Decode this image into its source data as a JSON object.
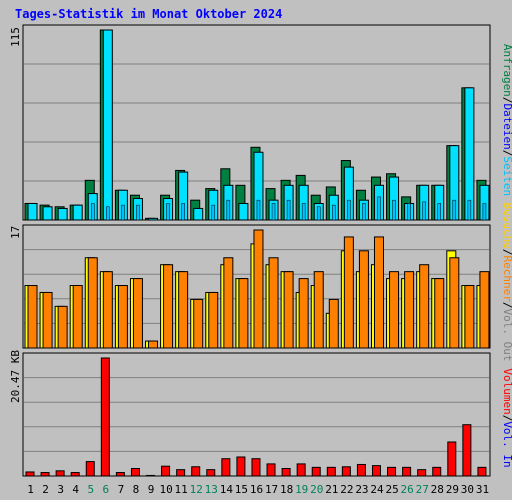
{
  "title": "Tages-Statistik im Monat Oktober 2024",
  "colors": {
    "background": "#c0c0c0",
    "grid": "#808080",
    "title": "#0000ff",
    "hits": "#008040",
    "files": "#00e0ff",
    "pages": "#00c0ff",
    "visits": "#ffff00",
    "sites": "#ff8000",
    "kbytes": "#ff0000",
    "weekend_label": "#00805c",
    "weekday_label": "#000000"
  },
  "chart_data": [
    {
      "type": "bar",
      "name": "hits-files-pages",
      "ymax_label": "115",
      "ylim": [
        0,
        115
      ],
      "categories": [
        "1",
        "2",
        "3",
        "4",
        "5",
        "6",
        "7",
        "8",
        "9",
        "10",
        "11",
        "12",
        "13",
        "14",
        "15",
        "16",
        "17",
        "18",
        "19",
        "20",
        "21",
        "22",
        "23",
        "24",
        "25",
        "26",
        "27",
        "28",
        "29",
        "30",
        "31"
      ],
      "weekend_days": [
        "5",
        "6",
        "12",
        "13",
        "19",
        "20",
        "26",
        "27"
      ],
      "series": [
        {
          "name": "Anfragen",
          "values": [
            10,
            9,
            8,
            9,
            24,
            115,
            18,
            15,
            1,
            15,
            30,
            12,
            19,
            31,
            21,
            44,
            19,
            24,
            27,
            15,
            20,
            36,
            18,
            26,
            28,
            14,
            21,
            21,
            45,
            80,
            24
          ]
        },
        {
          "name": "Dateien",
          "values": [
            10,
            8,
            7,
            9,
            16,
            115,
            18,
            13,
            1,
            13,
            29,
            7,
            18,
            21,
            10,
            41,
            12,
            21,
            21,
            10,
            15,
            32,
            12,
            21,
            26,
            10,
            21,
            21,
            45,
            80,
            21
          ]
        },
        {
          "name": "Seiten",
          "values": [
            0,
            0,
            0,
            0,
            10,
            8,
            9,
            9,
            0,
            10,
            10,
            0,
            9,
            12,
            0,
            12,
            10,
            12,
            10,
            8,
            9,
            12,
            10,
            14,
            12,
            10,
            11,
            10,
            12,
            12,
            10
          ]
        }
      ]
    },
    {
      "type": "bar",
      "name": "visits-sites",
      "ymax_label": "17",
      "ylim": [
        0,
        17
      ],
      "categories": [
        "1",
        "2",
        "3",
        "4",
        "5",
        "6",
        "7",
        "8",
        "9",
        "10",
        "11",
        "12",
        "13",
        "14",
        "15",
        "16",
        "17",
        "18",
        "19",
        "20",
        "21",
        "22",
        "23",
        "24",
        "25",
        "26",
        "27",
        "28",
        "29",
        "30",
        "31"
      ],
      "series": [
        {
          "name": "Besuche",
          "values": [
            9,
            8,
            6,
            9,
            13,
            11,
            9,
            10,
            1,
            12,
            11,
            7,
            8,
            12,
            10,
            15,
            12,
            11,
            8,
            9,
            5,
            14,
            11,
            12,
            10,
            10,
            11,
            10,
            14,
            9,
            9
          ]
        },
        {
          "name": "Rechner",
          "values": [
            9,
            8,
            6,
            9,
            13,
            11,
            9,
            10,
            1,
            12,
            11,
            7,
            8,
            13,
            10,
            17,
            13,
            11,
            10,
            11,
            7,
            16,
            14,
            16,
            11,
            11,
            12,
            10,
            13,
            9,
            11
          ]
        }
      ]
    },
    {
      "type": "bar",
      "name": "volume",
      "ymax_label": "20.47 KB",
      "ylim": [
        0,
        20.47
      ],
      "categories": [
        "1",
        "2",
        "3",
        "4",
        "5",
        "6",
        "7",
        "8",
        "9",
        "10",
        "11",
        "12",
        "13",
        "14",
        "15",
        "16",
        "17",
        "18",
        "19",
        "20",
        "21",
        "22",
        "23",
        "24",
        "25",
        "26",
        "27",
        "28",
        "29",
        "30",
        "31"
      ],
      "series": [
        {
          "name": "Volumen",
          "values": [
            0.7,
            0.6,
            0.9,
            0.6,
            2.5,
            20.47,
            0.6,
            1.3,
            0.1,
            1.7,
            1.1,
            1.6,
            1.1,
            3.0,
            3.3,
            3.0,
            2.1,
            1.3,
            2.1,
            1.5,
            1.5,
            1.6,
            2.0,
            1.8,
            1.5,
            1.5,
            1.1,
            1.5,
            5.9,
            8.9,
            1.5
          ]
        }
      ]
    }
  ],
  "right_legend": {
    "panel1": [
      {
        "text": "Anfragen",
        "color": "#008040"
      },
      {
        "text": "/",
        "color": "#000000"
      },
      {
        "text": "Dateien",
        "color": "#0000ff"
      },
      {
        "text": "/",
        "color": "#000000"
      },
      {
        "text": "Seiten",
        "color": "#00c0ff"
      }
    ],
    "panel2": [
      {
        "text": "Besuche",
        "color": "#ffd000"
      },
      {
        "text": "/",
        "color": "#000000"
      },
      {
        "text": "Rechner",
        "color": "#ff8000"
      },
      {
        "text": "/",
        "color": "#000000"
      },
      {
        "text": "Vol. Out",
        "color": "#808080"
      }
    ],
    "panel3": [
      {
        "text": "Volumen",
        "color": "#ff0000"
      },
      {
        "text": "/",
        "color": "#000000"
      },
      {
        "text": "Vol. In",
        "color": "#0000ff"
      }
    ]
  }
}
